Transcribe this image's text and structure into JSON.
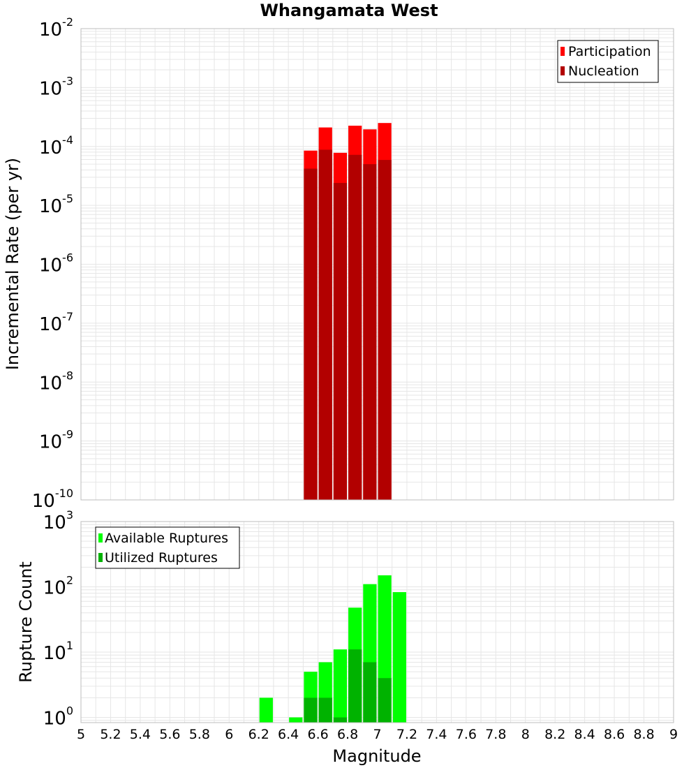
{
  "colors": {
    "participation": "#ff0000",
    "nucleation": "#b20000",
    "available": "#00ff00",
    "utilized": "#00b200",
    "grid": "#e6e6e6",
    "frame": "#bdbdbd"
  },
  "chart_data": {
    "type": "bar",
    "title": "Whangamata West",
    "xlabel": "Magnitude",
    "xlim": [
      5,
      9
    ],
    "x_ticks": [
      "5",
      "5.2",
      "5.4",
      "5.6",
      "5.8",
      "6",
      "6.2",
      "6.4",
      "6.6",
      "6.8",
      "7",
      "7.2",
      "7.4",
      "7.6",
      "7.8",
      "8",
      "8.2",
      "8.4",
      "8.6",
      "8.8",
      "9"
    ],
    "bin_width": 0.1,
    "panels": [
      {
        "name": "rate",
        "ylabel": "Incremental Rate (per yr)",
        "yscale": "log",
        "ylim_exp": [
          -10,
          -2
        ],
        "y_tick_exps": [
          "-10",
          "-9",
          "-8",
          "-7",
          "-6",
          "-5",
          "-4",
          "-3",
          "-2"
        ],
        "legend": [
          "Participation",
          "Nucleation"
        ],
        "series": [
          {
            "name": "Participation",
            "color": "#ff0000",
            "x": [
              6.55,
              6.65,
              6.75,
              6.85,
              6.95,
              7.05
            ],
            "values": [
              8.5e-05,
              0.00021,
              7.8e-05,
              0.000225,
              0.000195,
              0.00025
            ]
          },
          {
            "name": "Nucleation",
            "color": "#b20000",
            "x": [
              6.55,
              6.65,
              6.75,
              6.85,
              6.95,
              7.05
            ],
            "values": [
              4.2e-05,
              8.8e-05,
              2.4e-05,
              7.2e-05,
              5e-05,
              5.9e-05
            ]
          }
        ]
      },
      {
        "name": "count",
        "ylabel": "Rupture Count",
        "yscale": "log",
        "ylim_exp": [
          -0.08,
          3
        ],
        "y_tick_exps": [
          "0",
          "1",
          "2",
          "3"
        ],
        "legend": [
          "Available Ruptures",
          "Utilized Ruptures"
        ],
        "series": [
          {
            "name": "Available Ruptures",
            "color": "#00ff00",
            "x": [
              6.25,
              6.45,
              6.55,
              6.65,
              6.75,
              6.85,
              6.95,
              7.05,
              7.15
            ],
            "values": [
              2,
              1,
              5,
              7,
              11,
              48,
              110,
              150,
              83
            ]
          },
          {
            "name": "Utilized Ruptures",
            "color": "#00b200",
            "x": [
              6.55,
              6.65,
              6.75,
              6.85,
              6.95,
              7.05
            ],
            "values": [
              2,
              2,
              1,
              11,
              7,
              4
            ]
          }
        ]
      }
    ]
  }
}
